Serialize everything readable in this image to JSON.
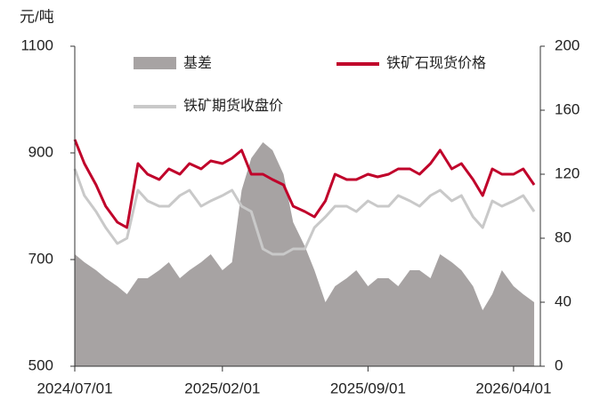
{
  "chart_data": {
    "type": "line",
    "y_label": "元/吨",
    "x": [
      "2024/07/01",
      "2024/07/15",
      "2024/08/01",
      "2024/08/15",
      "2024/09/01",
      "2024/09/15",
      "2024/10/01",
      "2024/10/15",
      "2024/11/01",
      "2024/11/15",
      "2024/12/01",
      "2024/12/15",
      "2025/01/01",
      "2025/01/15",
      "2025/02/01",
      "2025/02/15",
      "2025/03/01",
      "2025/03/15",
      "2025/04/01",
      "2025/04/15",
      "2025/05/01",
      "2025/05/15",
      "2025/06/01",
      "2025/06/15",
      "2025/07/01",
      "2025/07/15",
      "2025/08/01",
      "2025/08/15",
      "2025/09/01",
      "2025/09/15",
      "2025/10/01",
      "2025/10/15",
      "2025/11/01",
      "2025/11/15",
      "2025/12/01",
      "2025/12/15",
      "2026/01/01",
      "2026/01/15",
      "2026/02/01",
      "2026/02/15",
      "2026/03/01",
      "2026/03/15",
      "2026/04/01",
      "2026/04/15",
      "2026/05/01"
    ],
    "xlim": [
      "2024/07/01",
      "2026/05/10"
    ],
    "xticks": [
      "2024/07/01",
      "2025/02/01",
      "2025/09/01",
      "2026/04/01"
    ],
    "ylim": [
      500,
      1100
    ],
    "yticks": [
      500,
      700,
      900,
      1100
    ],
    "y2lim": [
      0,
      200
    ],
    "y2ticks": [
      0,
      40,
      80,
      120,
      160,
      200
    ],
    "series": [
      {
        "name": "基差",
        "color": "#a7a3a3",
        "axis": "y2",
        "kind": "area",
        "values": [
          70,
          65,
          60,
          55,
          50,
          45,
          55,
          55,
          60,
          65,
          55,
          60,
          65,
          70,
          60,
          65,
          110,
          130,
          140,
          135,
          120,
          90,
          75,
          60,
          40,
          50,
          55,
          60,
          50,
          55,
          55,
          50,
          60,
          60,
          55,
          70,
          65,
          60,
          50,
          35,
          45,
          60,
          50,
          45,
          40
        ]
      },
      {
        "name": "铁矿石现货价格",
        "color": "#c0002a",
        "values": [
          925,
          880,
          840,
          800,
          770,
          760,
          880,
          860,
          850,
          870,
          860,
          880,
          870,
          885,
          880,
          890,
          905,
          860,
          860,
          850,
          840,
          800,
          790,
          780,
          810,
          860,
          850,
          850,
          860,
          855,
          860,
          870,
          870,
          860,
          880,
          905,
          870,
          880,
          850,
          820,
          870,
          860,
          860,
          870,
          840
        ]
      },
      {
        "name": "铁矿期货收盘价",
        "color": "#c9c9c9",
        "values": [
          870,
          820,
          790,
          760,
          730,
          740,
          830,
          810,
          800,
          800,
          820,
          830,
          800,
          810,
          820,
          830,
          800,
          790,
          720,
          710,
          710,
          720,
          720,
          760,
          780,
          800,
          800,
          790,
          810,
          800,
          800,
          820,
          810,
          800,
          820,
          830,
          810,
          820,
          780,
          760,
          810,
          800,
          810,
          820,
          790
        ]
      }
    ]
  }
}
